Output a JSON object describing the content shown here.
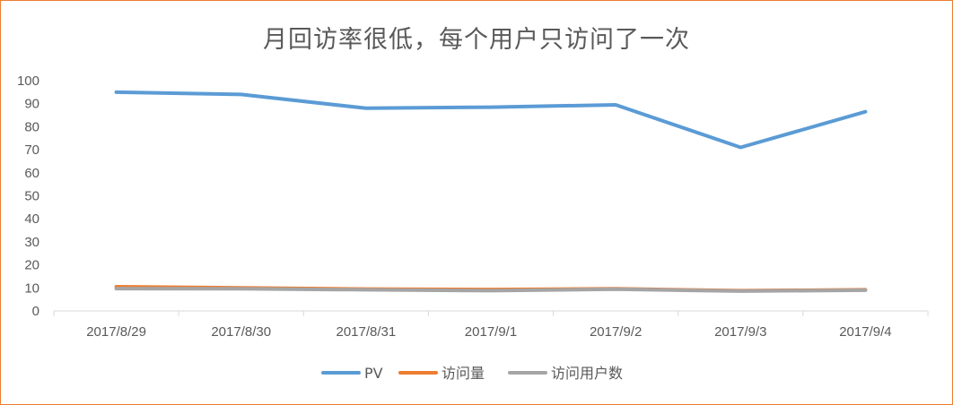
{
  "chart_data": {
    "type": "line",
    "title": "月回访率很低，每个用户只访问了一次",
    "categories": [
      "2017/8/29",
      "2017/8/30",
      "2017/8/31",
      "2017/9/1",
      "2017/9/2",
      "2017/9/3",
      "2017/9/4"
    ],
    "ylim": [
      0,
      100
    ],
    "yticks": [
      0,
      10,
      20,
      30,
      40,
      50,
      60,
      70,
      80,
      90,
      100
    ],
    "grid": false,
    "legend": "bottom",
    "series": [
      {
        "name": "PV",
        "color": "#5B9BD5",
        "values": [
          95,
          94,
          88,
          88.5,
          89.5,
          71,
          86.5
        ]
      },
      {
        "name": "访问量",
        "color": "#ED7D31",
        "values": [
          10.5,
          10,
          9.5,
          9.3,
          9.6,
          8.8,
          9.2
        ]
      },
      {
        "name": "访问用户数",
        "color": "#A5A5A5",
        "values": [
          9.7,
          9.6,
          9.2,
          8.8,
          9.4,
          8.6,
          9.0
        ]
      }
    ]
  }
}
